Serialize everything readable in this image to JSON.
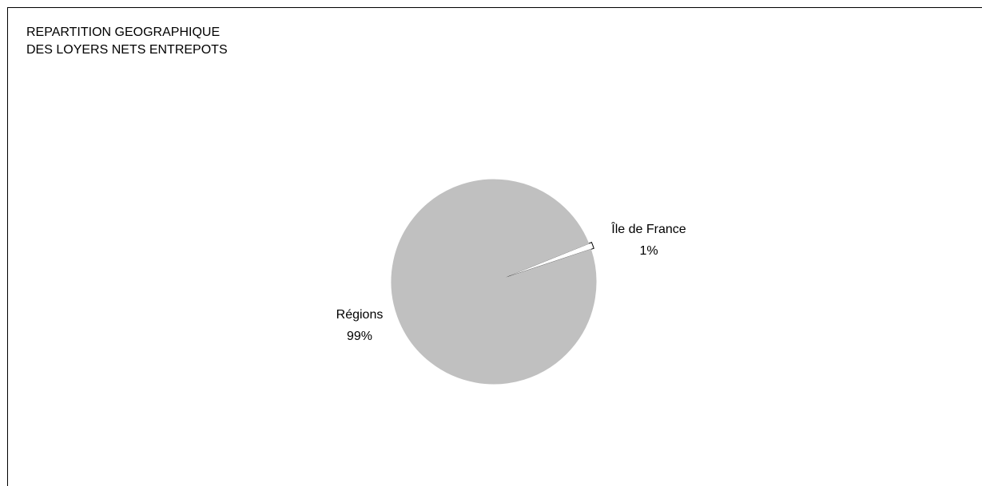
{
  "chart_data": {
    "type": "pie",
    "title_lines": [
      "REPARTITION GEOGRAPHIQUE",
      "DES LOYERS NETS ENTREPOTS"
    ],
    "slices": [
      {
        "label": "Île de France",
        "value": 1,
        "value_label": "1%",
        "color": "#ffffff",
        "stroke": "#000000"
      },
      {
        "label": "Régions",
        "value": 99,
        "value_label": "99%",
        "color": "#c0c0c0",
        "stroke": "#c0c0c0"
      }
    ],
    "legend": "none",
    "grid": false
  }
}
